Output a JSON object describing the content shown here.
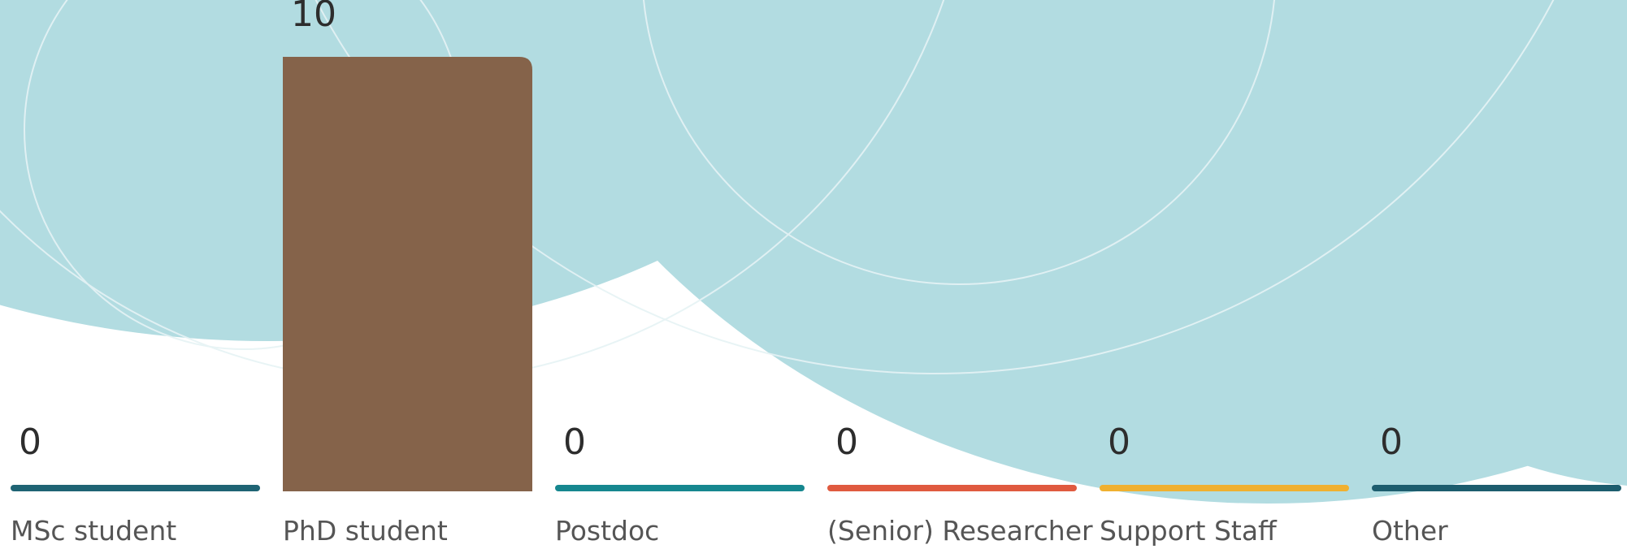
{
  "chart_data": {
    "type": "bar",
    "categories": [
      "MSc student",
      "PhD student",
      "Postdoc",
      "(Senior) Researcher",
      "Support Staff",
      "Other"
    ],
    "values": [
      0,
      10,
      0,
      0,
      0,
      0
    ],
    "colors": [
      "#1f6474",
      "#85634a",
      "#16878f",
      "#e05a3f",
      "#f0b030",
      "#1d5d6e"
    ]
  }
}
